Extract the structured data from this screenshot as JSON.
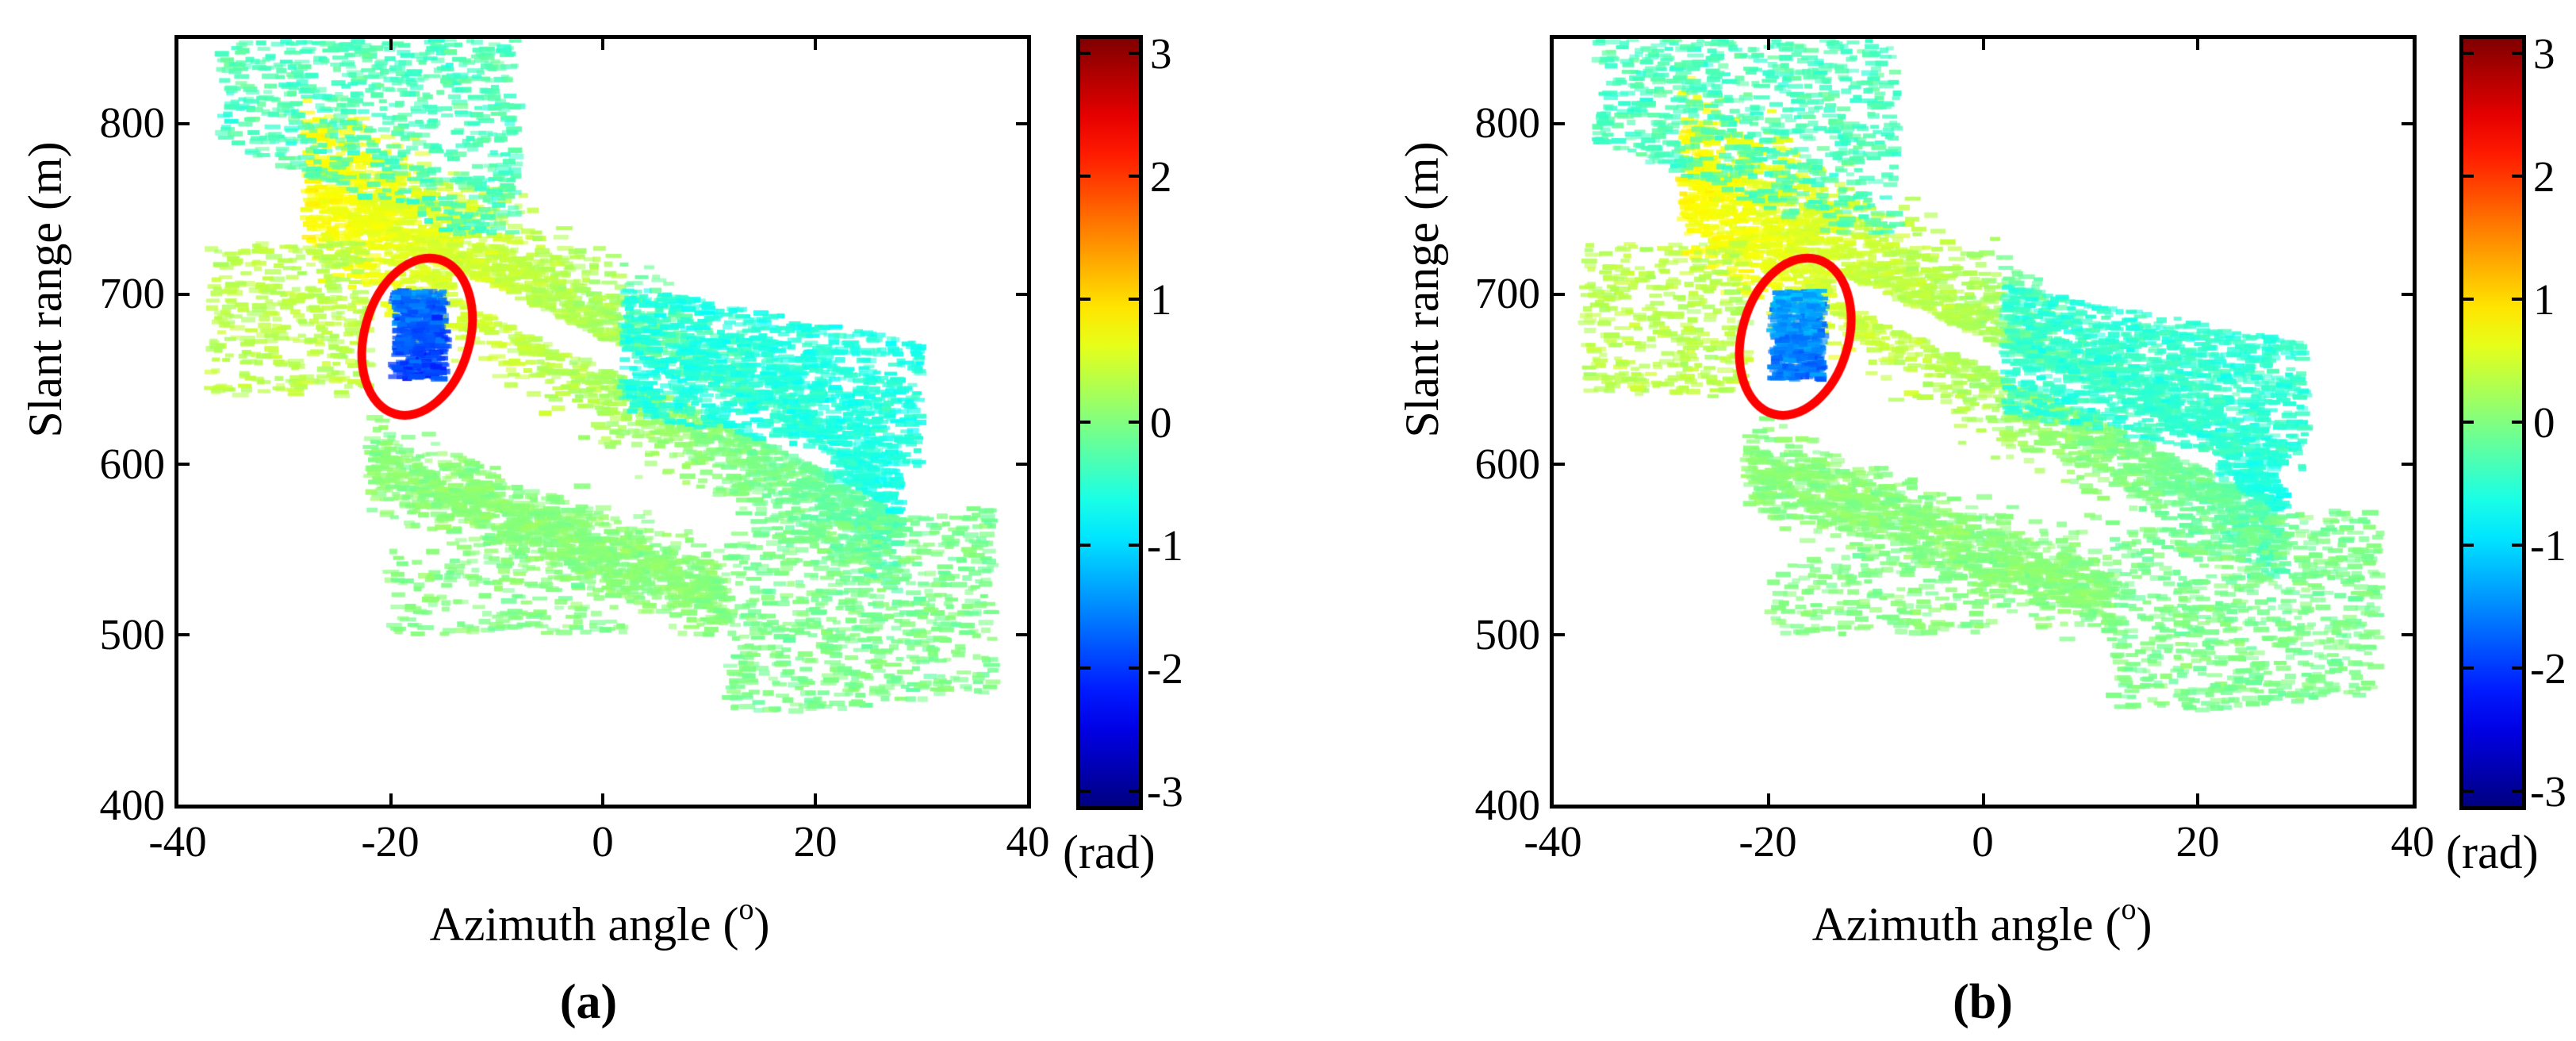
{
  "panels": [
    {
      "id": "a",
      "caption": "(a)"
    },
    {
      "id": "b",
      "caption": "(b)"
    }
  ],
  "axes": {
    "xlabel_text": "Azimuth angle (",
    "xlabel_sup": "o",
    "xlabel_close": ")",
    "ylabel": "Slant range (m)",
    "xticks": [
      "-40",
      "-20",
      "0",
      "20",
      "40"
    ],
    "yticks": [
      "400",
      "500",
      "600",
      "700",
      "800"
    ]
  },
  "colorbar": {
    "ticks": [
      "3",
      "2",
      "1",
      "0",
      "-1",
      "-2",
      "-3"
    ],
    "unit": "(rad)",
    "colormap": "jet"
  },
  "annotation": {
    "shape": "ellipse",
    "color": "#ff0000"
  },
  "chart_data": [
    {
      "type": "heatmap",
      "title": "(a)",
      "xlabel": "Azimuth angle (o)",
      "ylabel": "Slant range (m)",
      "xlim": [
        -40,
        40
      ],
      "ylim": [
        400,
        850
      ],
      "xticks": [
        -40,
        -20,
        0,
        20,
        40
      ],
      "yticks": [
        400,
        500,
        600,
        700,
        800
      ],
      "colorbar": {
        "label": "(rad)",
        "range": [
          -3.14,
          3.14
        ],
        "ticks": [
          3,
          2,
          1,
          0,
          -1,
          -2,
          -3
        ],
        "colormap": "jet"
      },
      "grid": false,
      "regions": [
        {
          "name": "upper-left sparse band",
          "x_range": [
            -36,
            -8
          ],
          "y_range": [
            735,
            850
          ],
          "phase_mean": -0.3
        },
        {
          "name": "main diagonal band",
          "from": [
            -25,
            765
          ],
          "to": [
            25,
            575
          ],
          "phase_mean": 0.3
        },
        {
          "name": "upper-right lobe",
          "x_range": [
            2,
            28
          ],
          "y_range": [
            630,
            705
          ],
          "phase_mean": -0.6
        },
        {
          "name": "lower band",
          "x_range": [
            -22,
            12
          ],
          "y_range": [
            505,
            625
          ],
          "phase_mean": 0.0
        },
        {
          "name": "lower-right tail",
          "x_range": [
            14,
            36
          ],
          "y_range": [
            455,
            565
          ],
          "phase_mean": -0.1
        },
        {
          "name": "anomaly cluster (circled)",
          "x_range": [
            -19.5,
            -15
          ],
          "y_range": [
            650,
            702
          ],
          "phase_mean": -1.6
        }
      ],
      "annotation": {
        "type": "ellipse",
        "center": [
          -17.5,
          675
        ],
        "x_radius_deg": 3.2,
        "y_radius_m": 45,
        "color": "red"
      }
    },
    {
      "type": "heatmap",
      "title": "(b)",
      "xlabel": "Azimuth angle (o)",
      "ylabel": "Slant range (m)",
      "xlim": [
        -40,
        40
      ],
      "ylim": [
        400,
        850
      ],
      "xticks": [
        -40,
        -20,
        0,
        20,
        40
      ],
      "yticks": [
        400,
        500,
        600,
        700,
        800
      ],
      "colorbar": {
        "label": "(rad)",
        "range": [
          -3.14,
          3.14
        ],
        "ticks": [
          3,
          2,
          1,
          0,
          -1,
          -2,
          -3
        ],
        "colormap": "jet"
      },
      "grid": false,
      "regions": [
        {
          "name": "upper-left sparse band",
          "x_range": [
            -36,
            -8
          ],
          "y_range": [
            735,
            850
          ],
          "phase_mean": -0.3
        },
        {
          "name": "main diagonal band",
          "from": [
            -25,
            765
          ],
          "to": [
            25,
            575
          ],
          "phase_mean": 0.25
        },
        {
          "name": "upper-right lobe",
          "x_range": [
            2,
            28
          ],
          "y_range": [
            630,
            705
          ],
          "phase_mean": -0.5
        },
        {
          "name": "lower band",
          "x_range": [
            -22,
            12
          ],
          "y_range": [
            505,
            625
          ],
          "phase_mean": 0.0
        },
        {
          "name": "lower-right tail",
          "x_range": [
            14,
            36
          ],
          "y_range": [
            455,
            565
          ],
          "phase_mean": -0.1
        },
        {
          "name": "anomaly cluster (circled)",
          "x_range": [
            -19.5,
            -15
          ],
          "y_range": [
            650,
            702
          ],
          "phase_mean": -1.3
        }
      ],
      "annotation": {
        "type": "ellipse",
        "center": [
          -17.5,
          675
        ],
        "x_radius_deg": 3.2,
        "y_radius_m": 45,
        "color": "red"
      }
    }
  ]
}
